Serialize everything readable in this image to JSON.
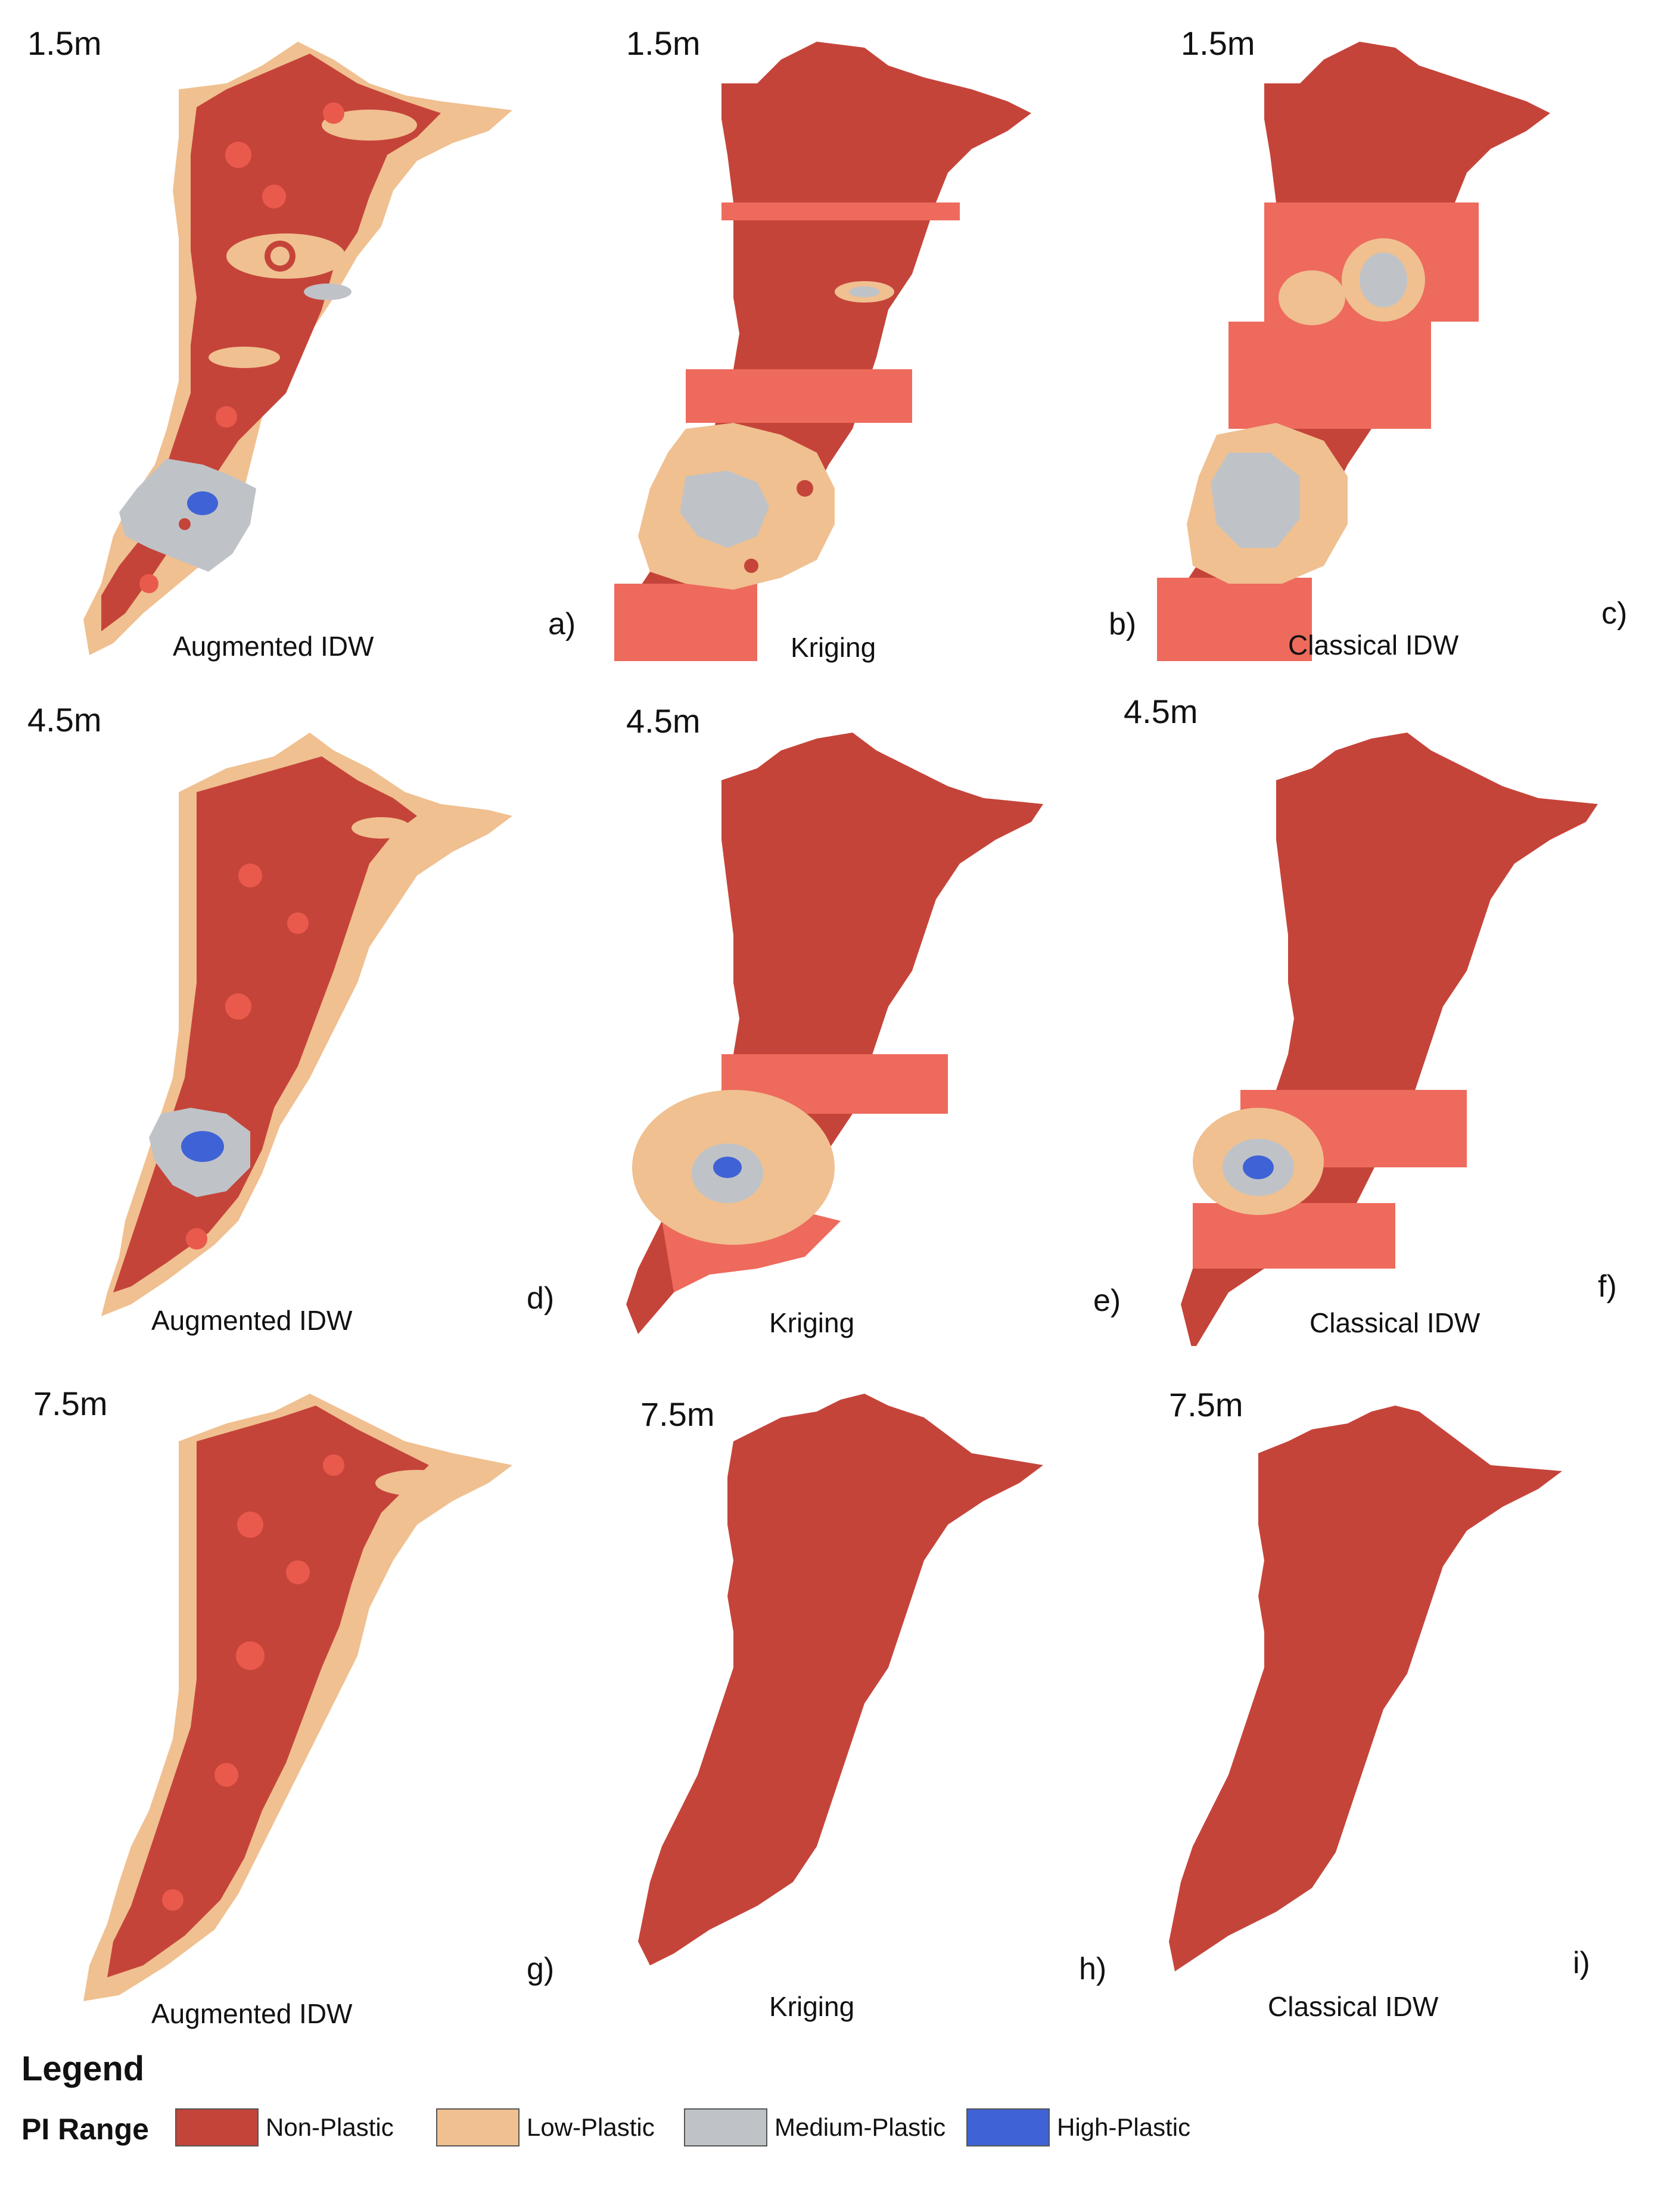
{
  "colors": {
    "non_plastic": "#c5443a",
    "non_plastic_light": "#ea5a4c",
    "band": "#ee6a5c",
    "low_plastic": "#f0c090",
    "medium_plastic": "#bfc3c8",
    "high_plastic": "#3f63d6"
  },
  "panels": [
    {
      "depth": "1.5m",
      "method": "Augmented IDW",
      "tag": "a)"
    },
    {
      "depth": "1.5m",
      "method": "Kriging",
      "tag": "b)"
    },
    {
      "depth": "1.5m",
      "method": "Classical IDW",
      "tag": "c)"
    },
    {
      "depth": "4.5m",
      "method": "Augmented IDW",
      "tag": "d)"
    },
    {
      "depth": "4.5m",
      "method": "Kriging",
      "tag": "e)"
    },
    {
      "depth": "4.5m",
      "method": "Classical IDW",
      "tag": "f)"
    },
    {
      "depth": "7.5m",
      "method": "Augmented IDW",
      "tag": "g)"
    },
    {
      "depth": "7.5m",
      "method": "Kriging",
      "tag": "h)"
    },
    {
      "depth": "7.5m",
      "method": "Classical IDW",
      "tag": "i)"
    }
  ],
  "legend": {
    "title": "Legend",
    "range_label": "PI Range",
    "items": [
      {
        "label": "Non-Plastic",
        "color": "#c5443a"
      },
      {
        "label": "Low-Plastic",
        "color": "#f0c090"
      },
      {
        "label": "Medium-Plastic",
        "color": "#bfc3c8"
      },
      {
        "label": "High-Plastic",
        "color": "#3f63d6"
      }
    ]
  }
}
